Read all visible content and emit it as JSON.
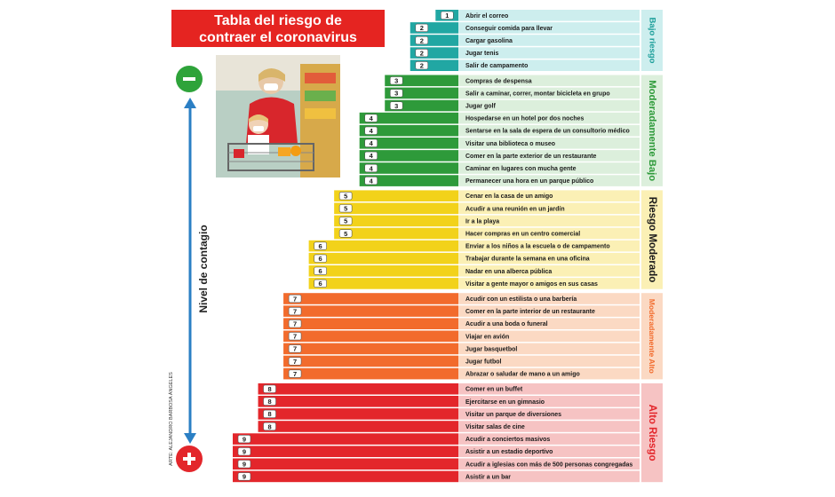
{
  "title": {
    "line1": "Tabla del riesgo de",
    "line2": "contraer el coronavirus"
  },
  "axis_label": "Nivel de contagio",
  "credit": "ARTE: ALEJANDRO BARBOSA ÁNGELES",
  "photo_description_icon": "shopping-photo",
  "symbols": {
    "low_end": "minus-icon",
    "high_end": "plus-icon"
  },
  "colors": {
    "title_bg": "#e52421",
    "level_1_2": "#21a7a3",
    "level_3_4": "#2e9a3a",
    "level_5_6": "#f2d21a",
    "level_7": "#f26b2c",
    "level_8_9": "#e3262b"
  },
  "chart_data": {
    "type": "bar",
    "orientation": "horizontal",
    "xlim": [
      0,
      9
    ],
    "categories": [
      {
        "name": "Bajo riesgo",
        "from_level": 1,
        "to_level": 2,
        "band_color": "#cdeeee",
        "text_color": "#1b9e9a"
      },
      {
        "name": "Moderadamente Bajo",
        "from_level": 3,
        "to_level": 4,
        "band_color": "#dcefdc",
        "text_color": "#2e9a3a"
      },
      {
        "name": "Riesgo Moderado",
        "from_level": 5,
        "to_level": 6,
        "band_color": "#fbf0b5",
        "text_color": "#1a1a1a"
      },
      {
        "name": "Moderadamente Alto",
        "from_level": 7,
        "to_level": 7,
        "band_color": "#fbd9c3",
        "text_color": "#f26b2c"
      },
      {
        "name": "Alto Riesgo",
        "from_level": 8,
        "to_level": 9,
        "band_color": "#f6c3c3",
        "text_color": "#e3262b"
      }
    ],
    "activities": [
      {
        "label": "Abrir el correo",
        "level": 1
      },
      {
        "label": "Conseguir comida para llevar",
        "level": 2
      },
      {
        "label": "Cargar gasolina",
        "level": 2
      },
      {
        "label": "Jugar tenis",
        "level": 2
      },
      {
        "label": "Salir de campamento",
        "level": 2
      },
      {
        "label": "Compras de despensa",
        "level": 3
      },
      {
        "label": "Salir a caminar, correr, montar bicicleta en grupo",
        "level": 3
      },
      {
        "label": "Jugar golf",
        "level": 3
      },
      {
        "label": "Hospedarse en un hotel por dos noches",
        "level": 4
      },
      {
        "label": "Sentarse en la sala de espera de un consultorio médico",
        "level": 4
      },
      {
        "label": "Visitar una biblioteca o museo",
        "level": 4
      },
      {
        "label": "Comer en la parte exterior de un restaurante",
        "level": 4
      },
      {
        "label": "Caminar en lugares con mucha gente",
        "level": 4
      },
      {
        "label": "Permanecer una hora en un parque público",
        "level": 4
      },
      {
        "label": "Cenar en la casa de un amigo",
        "level": 5
      },
      {
        "label": "Acudir a una reunión en un jardín",
        "level": 5
      },
      {
        "label": "Ir a la playa",
        "level": 5
      },
      {
        "label": "Hacer compras en un centro comercial",
        "level": 5
      },
      {
        "label": "Enviar a los niños a la escuela o de campamento",
        "level": 6
      },
      {
        "label": "Trabajar durante la semana en una oficina",
        "level": 6
      },
      {
        "label": "Nadar en una alberca pública",
        "level": 6
      },
      {
        "label": "Visitar a gente mayor o amigos en sus casas",
        "level": 6
      },
      {
        "label": "Acudir con un estilista o una barbería",
        "level": 7
      },
      {
        "label": "Comer en la parte interior de un restaurante",
        "level": 7
      },
      {
        "label": "Acudir a una boda o funeral",
        "level": 7
      },
      {
        "label": "Viajar en avión",
        "level": 7
      },
      {
        "label": "Jugar basquetbol",
        "level": 7
      },
      {
        "label": "Jugar futbol",
        "level": 7
      },
      {
        "label": "Abrazar o saludar de mano a un amigo",
        "level": 7
      },
      {
        "label": "Comer en un buffet",
        "level": 8
      },
      {
        "label": "Ejercitarse en un gimnasio",
        "level": 8
      },
      {
        "label": "Visitar un parque de diversiones",
        "level": 8
      },
      {
        "label": "Visitar salas de cine",
        "level": 8
      },
      {
        "label": "Acudir a conciertos masivos",
        "level": 9
      },
      {
        "label": "Asistir a un estadio deportivo",
        "level": 9
      },
      {
        "label": "Acudir a iglesias con más de 500 personas congregadas",
        "level": 9
      },
      {
        "label": "Asistir a un bar",
        "level": 9
      }
    ]
  }
}
